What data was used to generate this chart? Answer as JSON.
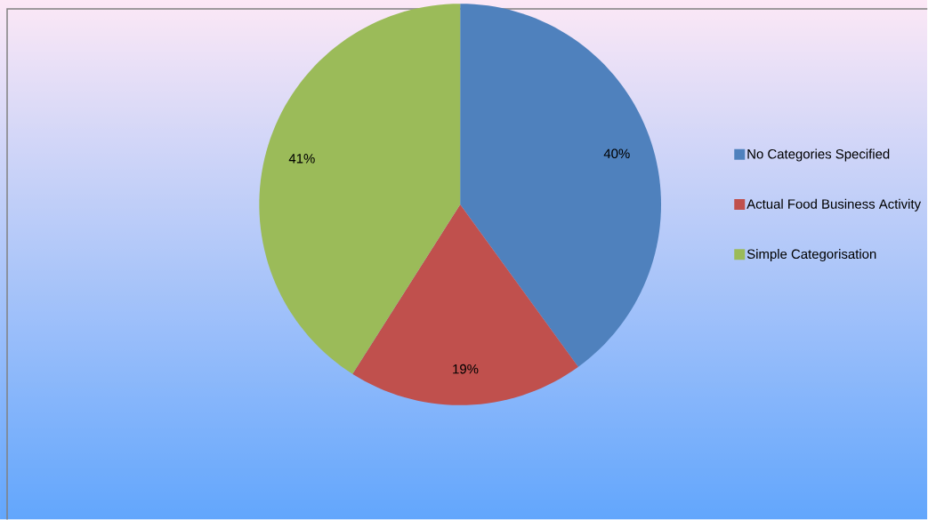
{
  "chart_data": {
    "type": "pie",
    "categories": [
      "No Categories Specified",
      "Actual Food Business Activity",
      "Simple Categorisation"
    ],
    "values": [
      40,
      19,
      41
    ],
    "colors": [
      "#4f81bd",
      "#c0504d",
      "#9bbb59"
    ],
    "value_labels": [
      "40%",
      "19%",
      "41%"
    ],
    "legend": "right"
  }
}
